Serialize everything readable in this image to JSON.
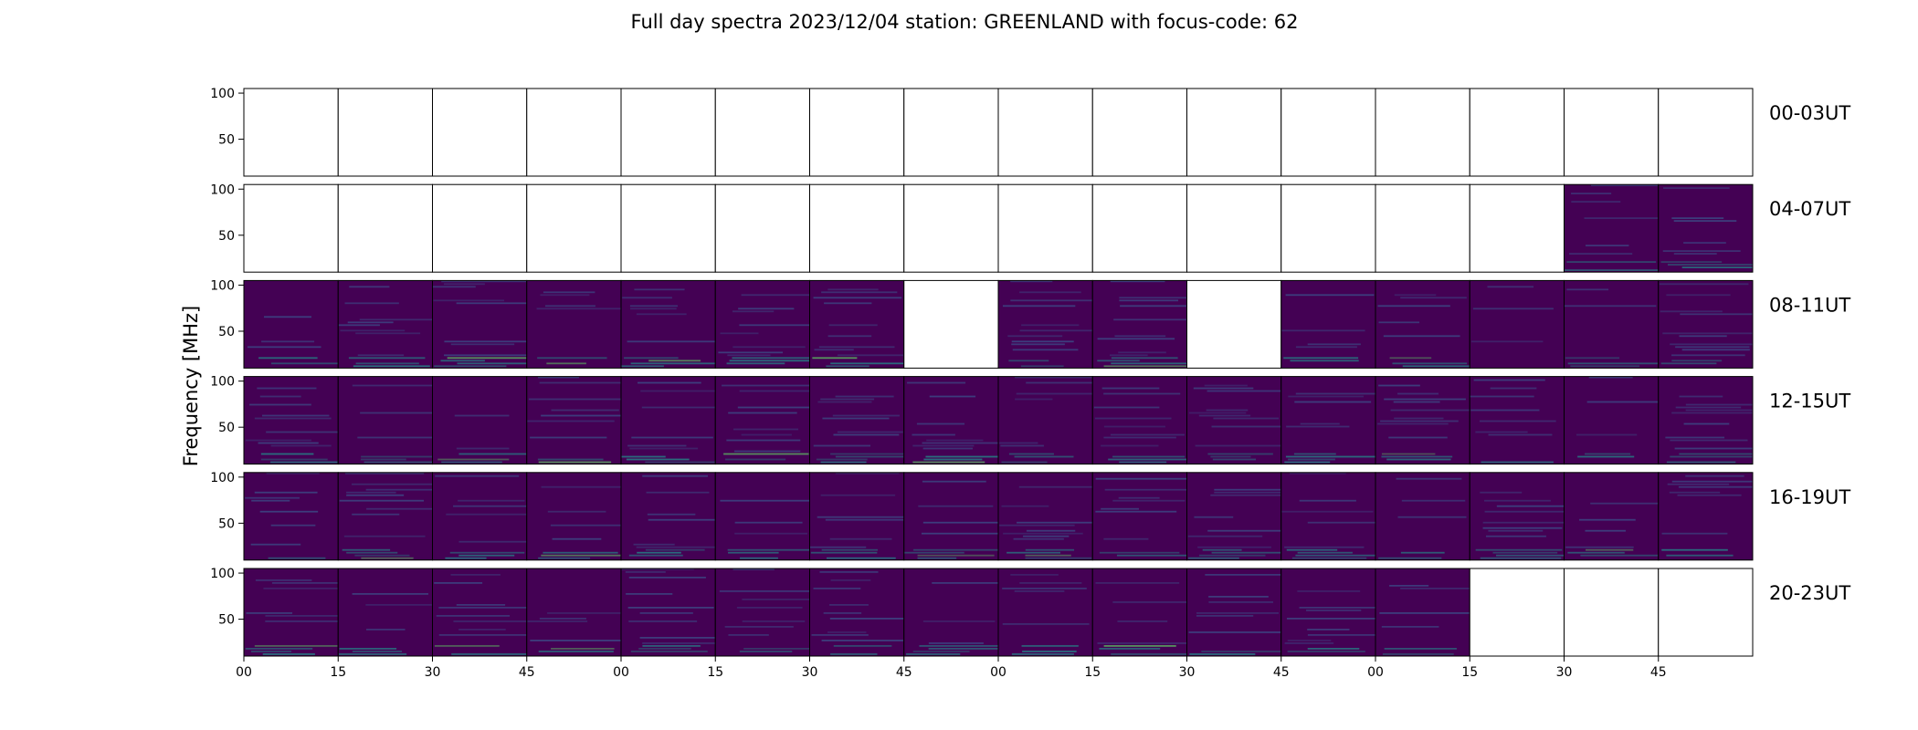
{
  "chart_data": {
    "type": "heatmap",
    "title": "Full day spectra 2023/12/04 station: GREENLAND with focus-code: 62",
    "ylabel": "Frequency [MHz]",
    "xlabel": "",
    "yticks": [
      50,
      100
    ],
    "ylim": [
      10,
      105
    ],
    "xtick_labels": [
      "00",
      "15",
      "30",
      "45",
      "00",
      "15",
      "30",
      "45",
      "00",
      "15",
      "30",
      "45",
      "00",
      "15",
      "30",
      "45"
    ],
    "colormap": [
      "#440154",
      "#3b528b",
      "#21918c",
      "#5ec962",
      "#fde725"
    ],
    "empty_color": "#ffffff",
    "grid": false,
    "row_labels": [
      "00-03UT",
      "04-07UT",
      "08-11UT",
      "12-15UT",
      "16-19UT",
      "20-23UT"
    ],
    "panels_per_row": 16,
    "data_present": [
      [
        0,
        0,
        0,
        0,
        0,
        0,
        0,
        0,
        0,
        0,
        0,
        0,
        0,
        0,
        0,
        0
      ],
      [
        0,
        0,
        0,
        0,
        0,
        0,
        0,
        0,
        0,
        0,
        0,
        0,
        0,
        0,
        1,
        1
      ],
      [
        1,
        1,
        1,
        1,
        1,
        1,
        1,
        0,
        1,
        1,
        0,
        1,
        1,
        1,
        1,
        1
      ],
      [
        1,
        1,
        1,
        1,
        1,
        1,
        1,
        1,
        1,
        1,
        1,
        1,
        1,
        1,
        1,
        1
      ],
      [
        1,
        1,
        1,
        1,
        1,
        1,
        1,
        1,
        1,
        1,
        1,
        1,
        1,
        1,
        1,
        1
      ],
      [
        1,
        1,
        1,
        1,
        1,
        1,
        1,
        1,
        1,
        1,
        1,
        1,
        1,
        0,
        0,
        0
      ]
    ]
  }
}
